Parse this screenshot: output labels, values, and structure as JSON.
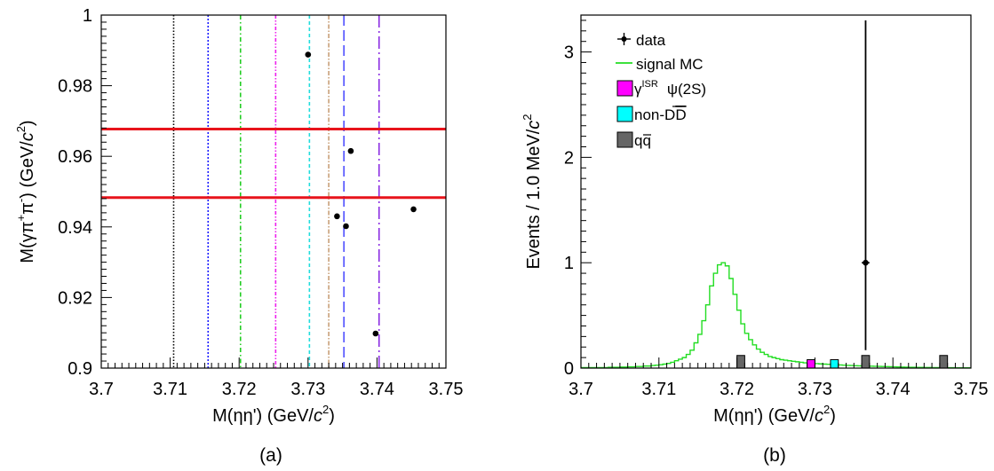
{
  "chart_data": [
    {
      "type": "scatter",
      "panel_label": "(a)",
      "xlabel_parts": {
        "pre": "M(ηη') (GeV/",
        "c": "c",
        "sup": "2",
        "post": ")"
      },
      "ylabel_parts": {
        "pre": "M(γπ",
        "sup1": "+",
        "mid": "π",
        "sup2": "-",
        "post": ") (GeV/",
        "c": "c",
        "sup3": "2",
        "end": ")"
      },
      "xlim": [
        3.7,
        3.75
      ],
      "ylim": [
        0.9,
        1.0
      ],
      "x_ticks": [
        {
          "v": 3.7,
          "label": "3.7"
        },
        {
          "v": 3.71,
          "label": "3.71"
        },
        {
          "v": 3.72,
          "label": "3.72"
        },
        {
          "v": 3.73,
          "label": "3.73"
        },
        {
          "v": 3.74,
          "label": "3.74"
        },
        {
          "v": 3.75,
          "label": "3.75"
        }
      ],
      "y_ticks": [
        {
          "v": 0.9,
          "label": "0.9"
        },
        {
          "v": 0.92,
          "label": "0.92"
        },
        {
          "v": 0.94,
          "label": "0.94"
        },
        {
          "v": 0.96,
          "label": "0.96"
        },
        {
          "v": 0.98,
          "label": "0.98"
        },
        {
          "v": 1.0,
          "label": "1"
        }
      ],
      "points": [
        {
          "x": 3.73,
          "y": 0.9888
        },
        {
          "x": 3.7362,
          "y": 0.9615
        },
        {
          "x": 3.7342,
          "y": 0.943
        },
        {
          "x": 3.7355,
          "y": 0.9402
        },
        {
          "x": 3.7453,
          "y": 0.945
        },
        {
          "x": 3.7398,
          "y": 0.9098
        }
      ],
      "horizontal_lines": [
        {
          "y": 0.9677,
          "color": "#e8141c"
        },
        {
          "y": 0.9483,
          "color": "#e8141c"
        }
      ],
      "vertical_lines": [
        {
          "x": 3.7105,
          "color": "#000000",
          "dash": "1.5,2"
        },
        {
          "x": 3.7155,
          "color": "#1a1aff",
          "dash": "2,2"
        },
        {
          "x": 3.7202,
          "color": "#22cc22",
          "dash": "5,3,1.5,3"
        },
        {
          "x": 3.7253,
          "color": "#ee22ee",
          "dash": "4,2,1.5,2,1.5,2"
        },
        {
          "x": 3.7302,
          "color": "#22dddd",
          "dash": "4,3"
        },
        {
          "x": 3.733,
          "color": "#c8a078",
          "dash": "5,2,1.5,2"
        },
        {
          "x": 3.7352,
          "color": "#5050ff",
          "dash": "12,5"
        },
        {
          "x": 3.7403,
          "color": "#8a2be2",
          "dash": "14,4,2,4"
        }
      ]
    },
    {
      "type": "histogram",
      "panel_label": "(b)",
      "xlabel_parts": {
        "pre": "M(ηη') (GeV/",
        "c": "c",
        "sup": "2",
        "post": ")"
      },
      "ylabel_parts": {
        "pre": "Events / 1.0 MeV/",
        "c": "c",
        "sup": "2"
      },
      "xlim": [
        3.7,
        3.75
      ],
      "ylim": [
        0,
        3.35
      ],
      "x_ticks": [
        {
          "v": 3.7,
          "label": "3.7"
        },
        {
          "v": 3.71,
          "label": "3.71"
        },
        {
          "v": 3.72,
          "label": "3.72"
        },
        {
          "v": 3.73,
          "label": "3.73"
        },
        {
          "v": 3.74,
          "label": "3.74"
        },
        {
          "v": 3.75,
          "label": "3.75"
        }
      ],
      "y_ticks": [
        {
          "v": 0,
          "label": "0"
        },
        {
          "v": 1,
          "label": "1"
        },
        {
          "v": 2,
          "label": "2"
        },
        {
          "v": 3,
          "label": "3"
        }
      ],
      "data_points": [
        {
          "x": 3.7365,
          "y": 1,
          "err_low": 0.83,
          "err_high": 2.3
        }
      ],
      "signal_mc": {
        "bin_width": 0.0005,
        "x_start": 3.7,
        "values": [
          0.005,
          0.005,
          0.005,
          0.005,
          0.005,
          0.005,
          0.005,
          0.008,
          0.008,
          0.008,
          0.01,
          0.01,
          0.012,
          0.012,
          0.015,
          0.015,
          0.02,
          0.02,
          0.025,
          0.028,
          0.032,
          0.038,
          0.045,
          0.055,
          0.07,
          0.085,
          0.1,
          0.13,
          0.17,
          0.24,
          0.32,
          0.45,
          0.6,
          0.78,
          0.9,
          0.98,
          1.0,
          0.97,
          0.85,
          0.7,
          0.55,
          0.42,
          0.33,
          0.27,
          0.22,
          0.18,
          0.15,
          0.13,
          0.11,
          0.1,
          0.09,
          0.08,
          0.075,
          0.07,
          0.065,
          0.06,
          0.055,
          0.05,
          0.048,
          0.045,
          0.043,
          0.04,
          0.038,
          0.036,
          0.034,
          0.032,
          0.03,
          0.028,
          0.026,
          0.025,
          0.023,
          0.022,
          0.02,
          0.019,
          0.018,
          0.017,
          0.016,
          0.015,
          0.014,
          0.013,
          0.012,
          0.011,
          0.01,
          0.009,
          0.008,
          0.008,
          0.007,
          0.007,
          0.006,
          0.006,
          0.005,
          0.005,
          0.005,
          0.004,
          0.004,
          0.004,
          0.003,
          0.003,
          0.003,
          0.003
        ]
      },
      "bars": [
        {
          "x0": 3.72,
          "x1": 3.721,
          "y": 0.12,
          "color": "#666666",
          "series": "qq"
        },
        {
          "x0": 3.729,
          "x1": 3.73,
          "y": 0.08,
          "color": "#ff00ff",
          "series": "isr"
        },
        {
          "x0": 3.732,
          "x1": 3.733,
          "y": 0.08,
          "color": "#00ffff",
          "series": "nondd"
        },
        {
          "x0": 3.736,
          "x1": 3.737,
          "y": 0.12,
          "color": "#666666",
          "series": "qq"
        },
        {
          "x0": 3.746,
          "x1": 3.747,
          "y": 0.12,
          "color": "#666666",
          "series": "qq"
        }
      ],
      "legend": {
        "placement": "top-left",
        "data": "data",
        "signal": "signal MC",
        "isr_gamma": "γ",
        "isr_sup": "ISR",
        "isr_psi": "ψ(2S)",
        "nondd_pre": "non-D",
        "nondd_bar": "D",
        "qq_q": "q",
        "qq_qbar": "q"
      }
    }
  ]
}
